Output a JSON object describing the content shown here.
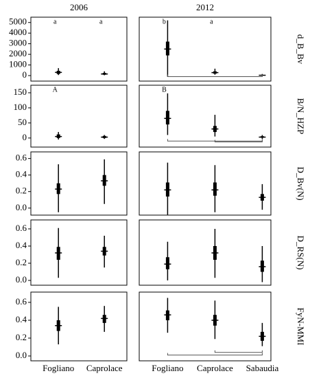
{
  "facets": {
    "columns": [
      "2006",
      "2012"
    ],
    "rows": [
      "d_B_Bv",
      "B/N_HZP",
      "D_Bv(N)",
      "D_RS(N)",
      "FyN-MMI"
    ]
  },
  "chart_data": [
    {
      "type": "interval",
      "categories": [
        null,
        null
      ],
      "values": [
        300,
        150
      ],
      "inner_low": [
        150,
        80
      ],
      "inner_high": [
        450,
        250
      ],
      "outer_low": [
        50,
        30
      ],
      "outer_high": [
        700,
        400
      ],
      "ylim": [
        -520,
        5500
      ],
      "yticks": [
        0,
        1000,
        2000,
        3000,
        4000,
        5000
      ],
      "letters": [
        "a",
        "a"
      ]
    },
    {
      "type": "interval",
      "categories": [
        null,
        null,
        null
      ],
      "values": [
        2500,
        280,
        30
      ],
      "inner_low": [
        1900,
        180,
        10
      ],
      "inner_high": [
        3200,
        400,
        60
      ],
      "outer_low": [
        -100,
        80,
        0
      ],
      "outer_high": [
        5200,
        650,
        150
      ],
      "ylim": [
        -520,
        5500
      ],
      "letters": [
        "b",
        "a",
        null
      ],
      "brackets": [
        {
          "from": 0,
          "to": 2,
          "y": -100
        }
      ]
    },
    {
      "type": "interval",
      "categories": [
        null,
        null
      ],
      "values": [
        5,
        3
      ],
      "inner_low": [
        0,
        0
      ],
      "inner_high": [
        12,
        7
      ],
      "outer_low": [
        -5,
        -3
      ],
      "outer_high": [
        20,
        10
      ],
      "ylim": [
        -30,
        175
      ],
      "yticks": [
        0,
        50,
        100,
        150
      ],
      "letters": [
        "A",
        null
      ]
    },
    {
      "type": "interval",
      "categories": [
        null,
        null,
        null
      ],
      "values": [
        65,
        30,
        3
      ],
      "inner_low": [
        45,
        20,
        1
      ],
      "inner_high": [
        90,
        40,
        6
      ],
      "outer_low": [
        10,
        5,
        -3
      ],
      "outer_high": [
        148,
        77,
        10
      ],
      "ylim": [
        -30,
        175
      ],
      "letters": [
        "B",
        null,
        null
      ],
      "brackets": [
        {
          "from": 0,
          "to": 2,
          "y": -10
        },
        {
          "from": 1,
          "to": 2,
          "y": -13
        }
      ]
    },
    {
      "type": "interval",
      "categories": [
        null,
        null
      ],
      "values": [
        0.23,
        0.33
      ],
      "inner_low": [
        0.17,
        0.27
      ],
      "inner_high": [
        0.3,
        0.4
      ],
      "outer_low": [
        -0.05,
        0.05
      ],
      "outer_high": [
        0.53,
        0.59
      ],
      "ylim": [
        -0.085,
        0.68
      ],
      "yticks": [
        {
          "value": 0,
          "label": "0.0"
        },
        0.2,
        0.4,
        0.6
      ]
    },
    {
      "type": "interval",
      "categories": [
        null,
        null,
        null
      ],
      "values": [
        0.22,
        0.22,
        0.13
      ],
      "inner_low": [
        0.14,
        0.15,
        0.09
      ],
      "inner_high": [
        0.31,
        0.31,
        0.17
      ],
      "outer_low": [
        -0.08,
        -0.05,
        -0.02
      ],
      "outer_high": [
        0.55,
        0.52,
        0.29
      ],
      "ylim": [
        -0.085,
        0.68
      ]
    },
    {
      "type": "interval",
      "categories": [
        null,
        null
      ],
      "values": [
        0.32,
        0.34
      ],
      "inner_low": [
        0.24,
        0.29
      ],
      "inner_high": [
        0.39,
        0.39
      ],
      "outer_low": [
        0.03,
        0.15
      ],
      "outer_high": [
        0.61,
        0.52
      ],
      "ylim": [
        -0.056,
        0.704
      ],
      "yticks": [
        {
          "value": 0,
          "label": "0.0"
        },
        0.2,
        0.4,
        0.6
      ]
    },
    {
      "type": "interval",
      "categories": [
        null,
        null,
        null
      ],
      "values": [
        0.19,
        0.32,
        0.16
      ],
      "inner_low": [
        0.13,
        0.24,
        0.1
      ],
      "inner_high": [
        0.27,
        0.4,
        0.23
      ],
      "outer_low": [
        0,
        0.03,
        -0.02
      ],
      "outer_high": [
        0.45,
        0.6,
        0.4
      ],
      "ylim": [
        -0.056,
        0.704
      ]
    },
    {
      "type": "interval",
      "categories": [
        "Fogliano",
        "Caprolace"
      ],
      "values": [
        0.34,
        0.42
      ],
      "inner_low": [
        0.28,
        0.37
      ],
      "inner_high": [
        0.4,
        0.46
      ],
      "outer_low": [
        0.13,
        0.27
      ],
      "outer_high": [
        0.55,
        0.56
      ],
      "ylim": [
        -0.054,
        0.715
      ],
      "yticks": [
        {
          "value": 0,
          "label": "0.0"
        },
        0.2,
        0.4,
        0.6
      ]
    },
    {
      "type": "interval",
      "categories": [
        "Fogliano",
        "Caprolace",
        "Sabaudia"
      ],
      "values": [
        0.46,
        0.4,
        0.22
      ],
      "inner_low": [
        0.4,
        0.34,
        0.17
      ],
      "inner_high": [
        0.51,
        0.46,
        0.27
      ],
      "outer_low": [
        0.26,
        0.19,
        0.11
      ],
      "outer_high": [
        0.65,
        0.62,
        0.37
      ],
      "ylim": [
        -0.054,
        0.715
      ],
      "brackets": [
        {
          "from": 0,
          "to": 2,
          "y": 0.01
        },
        {
          "from": 1,
          "to": 2,
          "y": 0.04
        }
      ]
    }
  ]
}
